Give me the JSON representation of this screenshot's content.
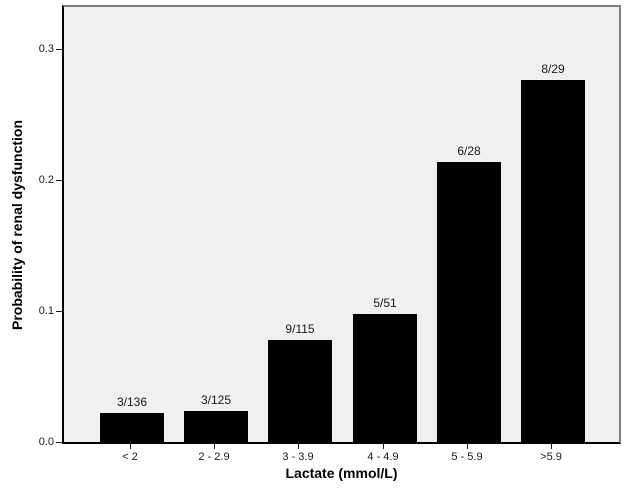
{
  "chart_data": {
    "type": "bar",
    "title": "",
    "xlabel": "Lactate (mmol/L)",
    "ylabel": "Probability of renal dysfunction",
    "categories": [
      "< 2",
      "2 - 2.9",
      "3 - 3.9",
      "4 - 4.9",
      "5 - 5.9",
      ">5.9"
    ],
    "values": [
      0.022,
      0.024,
      0.078,
      0.098,
      0.214,
      0.276
    ],
    "bar_labels": [
      "3/136",
      "3/125",
      "9/115",
      "5/51",
      "6/28",
      "8/29"
    ],
    "yticks": [
      {
        "value": 0.0,
        "label": "0.0"
      },
      {
        "value": 0.1,
        "label": "0.1"
      },
      {
        "value": 0.2,
        "label": "0.2"
      },
      {
        "value": 0.3,
        "label": "0.3"
      }
    ],
    "ylim": [
      0,
      0.3336
    ],
    "grid": false,
    "legend": null,
    "colors": {
      "bar_fill": "#000000",
      "plot_background": "#f0f0f0",
      "frame": "#7f7f7f",
      "axis": "#000000",
      "text": "#1a1a1a"
    }
  }
}
